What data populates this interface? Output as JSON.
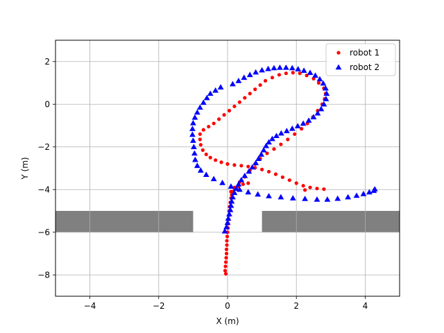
{
  "chart_data": {
    "type": "scatter",
    "xlabel": "X (m)",
    "ylabel": "Y (m)",
    "xlim": [
      -5,
      5
    ],
    "ylim": [
      -9,
      3
    ],
    "xticks": [
      -4,
      -2,
      0,
      2,
      4
    ],
    "yticks": [
      2,
      0,
      -2,
      -4,
      -6,
      -8
    ],
    "xtick_labels": [
      "−4",
      "−2",
      "0",
      "2",
      "4"
    ],
    "ytick_labels": [
      "2",
      "0",
      "−2",
      "−4",
      "−6",
      "−8"
    ],
    "grid": true,
    "legend_position": "top-right",
    "obstacles": [
      {
        "x": [
          -5,
          -1
        ],
        "y": [
          -6,
          -5
        ]
      },
      {
        "x": [
          1,
          5
        ],
        "y": [
          -6,
          -5
        ]
      }
    ],
    "series": [
      {
        "name": "robot 1",
        "marker": "circle",
        "color": "#ff0000",
        "points": [
          [
            -0.05,
            -7.95
          ],
          [
            -0.07,
            -7.8
          ],
          [
            -0.06,
            -7.6
          ],
          [
            -0.05,
            -7.4
          ],
          [
            -0.04,
            -7.2
          ],
          [
            -0.03,
            -7.0
          ],
          [
            -0.03,
            -6.8
          ],
          [
            -0.02,
            -6.6
          ],
          [
            -0.02,
            -6.4
          ],
          [
            -0.01,
            -6.2
          ],
          [
            0.0,
            -6.0
          ],
          [
            0.01,
            -5.8
          ],
          [
            0.02,
            -5.6
          ],
          [
            0.03,
            -5.4
          ],
          [
            0.04,
            -5.2
          ],
          [
            0.05,
            -5.0
          ],
          [
            0.06,
            -4.8
          ],
          [
            0.08,
            -4.6
          ],
          [
            0.1,
            -4.4
          ],
          [
            0.12,
            -4.25
          ],
          [
            0.15,
            -4.1
          ],
          [
            0.2,
            -3.95
          ],
          [
            0.3,
            -3.85
          ],
          [
            0.45,
            -3.75
          ],
          [
            0.6,
            -3.7
          ],
          [
            -0.8,
            -1.65
          ],
          [
            -0.78,
            -1.9
          ],
          [
            -0.72,
            -2.15
          ],
          [
            -0.62,
            -2.35
          ],
          [
            -0.5,
            -2.5
          ],
          [
            -0.35,
            -2.62
          ],
          [
            -0.18,
            -2.72
          ],
          [
            0.0,
            -2.8
          ],
          [
            0.2,
            -2.85
          ],
          [
            0.4,
            -2.88
          ],
          [
            0.6,
            -2.92
          ],
          [
            0.8,
            -2.98
          ],
          [
            1.0,
            -3.06
          ],
          [
            1.2,
            -3.16
          ],
          [
            1.4,
            -3.28
          ],
          [
            1.6,
            -3.42
          ],
          [
            1.8,
            -3.56
          ],
          [
            2.0,
            -3.7
          ],
          [
            2.2,
            -3.82
          ],
          [
            2.4,
            -3.9
          ],
          [
            2.6,
            -3.95
          ],
          [
            2.8,
            -3.98
          ],
          [
            2.25,
            -4.02
          ],
          [
            -0.8,
            -1.4
          ],
          [
            -0.7,
            -1.2
          ],
          [
            -0.55,
            -1.05
          ],
          [
            -0.4,
            -0.9
          ],
          [
            -0.25,
            -0.7
          ],
          [
            -0.1,
            -0.5
          ],
          [
            0.05,
            -0.3
          ],
          [
            0.2,
            -0.1
          ],
          [
            0.35,
            0.1
          ],
          [
            0.5,
            0.3
          ],
          [
            0.65,
            0.5
          ],
          [
            0.8,
            0.7
          ],
          [
            0.95,
            0.9
          ],
          [
            1.1,
            1.1
          ],
          [
            1.3,
            1.25
          ],
          [
            1.5,
            1.38
          ],
          [
            1.7,
            1.45
          ],
          [
            1.9,
            1.48
          ],
          [
            2.1,
            1.45
          ],
          [
            2.3,
            1.35
          ],
          [
            2.5,
            1.2
          ],
          [
            2.65,
            1.0
          ],
          [
            2.8,
            0.75
          ],
          [
            2.85,
            0.5
          ],
          [
            2.82,
            0.25
          ],
          [
            2.75,
            0.0
          ],
          [
            2.62,
            -0.3
          ],
          [
            2.48,
            -0.6
          ],
          [
            2.32,
            -0.9
          ],
          [
            2.15,
            -1.15
          ],
          [
            1.95,
            -1.4
          ],
          [
            1.75,
            -1.65
          ],
          [
            1.55,
            -1.88
          ],
          [
            1.35,
            -2.1
          ],
          [
            1.15,
            -2.3
          ],
          [
            0.95,
            -2.55
          ],
          [
            0.8,
            -2.8
          ],
          [
            0.65,
            -3.1
          ],
          [
            0.5,
            -3.4
          ],
          [
            0.35,
            -3.65
          ],
          [
            0.2,
            -3.9
          ],
          [
            0.1,
            -4.1
          ]
        ]
      },
      {
        "name": "robot 2",
        "marker": "triangle",
        "color": "#0000ff",
        "points": [
          [
            -0.08,
            -5.95
          ],
          [
            -0.03,
            -5.75
          ],
          [
            0.0,
            -5.55
          ],
          [
            0.02,
            -5.35
          ],
          [
            0.05,
            -5.15
          ],
          [
            0.08,
            -4.95
          ],
          [
            0.1,
            -4.75
          ],
          [
            0.12,
            -4.55
          ],
          [
            0.15,
            -4.35
          ],
          [
            0.2,
            -4.15
          ],
          [
            0.25,
            -3.95
          ],
          [
            0.32,
            -3.75
          ],
          [
            0.4,
            -3.55
          ],
          [
            0.5,
            -3.35
          ],
          [
            0.62,
            -3.15
          ],
          [
            0.72,
            -2.95
          ],
          [
            0.82,
            -2.75
          ],
          [
            0.9,
            -2.55
          ],
          [
            0.98,
            -2.35
          ],
          [
            1.05,
            -2.15
          ],
          [
            1.12,
            -1.95
          ],
          [
            1.2,
            -1.78
          ],
          [
            1.3,
            -1.62
          ],
          [
            1.42,
            -1.48
          ],
          [
            1.56,
            -1.36
          ],
          [
            1.72,
            -1.25
          ],
          [
            1.88,
            -1.14
          ],
          [
            2.04,
            -1.02
          ],
          [
            2.2,
            -0.9
          ],
          [
            2.36,
            -0.76
          ],
          [
            2.5,
            -0.6
          ],
          [
            2.62,
            -0.42
          ],
          [
            2.72,
            -0.22
          ],
          [
            2.8,
            0.0
          ],
          [
            2.86,
            0.25
          ],
          [
            2.88,
            0.5
          ],
          [
            2.85,
            0.75
          ],
          [
            2.78,
            0.98
          ],
          [
            2.68,
            1.18
          ],
          [
            2.55,
            1.35
          ],
          [
            2.4,
            1.48
          ],
          [
            2.22,
            1.58
          ],
          [
            2.05,
            1.65
          ],
          [
            1.88,
            1.7
          ],
          [
            1.7,
            1.72
          ],
          [
            1.52,
            1.72
          ],
          [
            1.35,
            1.7
          ],
          [
            1.18,
            1.66
          ],
          [
            1.0,
            1.6
          ],
          [
            0.82,
            1.5
          ],
          [
            0.65,
            1.38
          ],
          [
            0.48,
            1.25
          ],
          [
            0.32,
            1.1
          ],
          [
            0.15,
            0.95
          ],
          [
            -0.2,
            0.8
          ],
          [
            -0.35,
            0.65
          ],
          [
            -0.5,
            0.5
          ],
          [
            -0.6,
            0.3
          ],
          [
            -0.7,
            0.08
          ],
          [
            -0.8,
            -0.15
          ],
          [
            -0.88,
            -0.38
          ],
          [
            -0.95,
            -0.62
          ],
          [
            -1.0,
            -0.88
          ],
          [
            -1.02,
            -1.15
          ],
          [
            -1.02,
            -1.42
          ],
          [
            -1.0,
            -1.7
          ],
          [
            -0.98,
            -2.0
          ],
          [
            -0.96,
            -2.3
          ],
          [
            -0.94,
            -2.6
          ],
          [
            -0.88,
            -2.88
          ],
          [
            -0.78,
            -3.1
          ],
          [
            -0.62,
            -3.3
          ],
          [
            -0.4,
            -3.5
          ],
          [
            -0.15,
            -3.68
          ],
          [
            0.1,
            -3.85
          ],
          [
            0.35,
            -4.0
          ],
          [
            0.6,
            -4.12
          ],
          [
            0.88,
            -4.22
          ],
          [
            1.2,
            -4.3
          ],
          [
            1.55,
            -4.35
          ],
          [
            1.9,
            -4.4
          ],
          [
            2.25,
            -4.43
          ],
          [
            2.6,
            -4.46
          ],
          [
            2.9,
            -4.46
          ],
          [
            3.2,
            -4.42
          ],
          [
            3.5,
            -4.35
          ],
          [
            3.75,
            -4.28
          ],
          [
            3.95,
            -4.2
          ],
          [
            4.12,
            -4.12
          ],
          [
            4.25,
            -4.05
          ],
          [
            4.28,
            -3.98
          ]
        ]
      }
    ]
  }
}
